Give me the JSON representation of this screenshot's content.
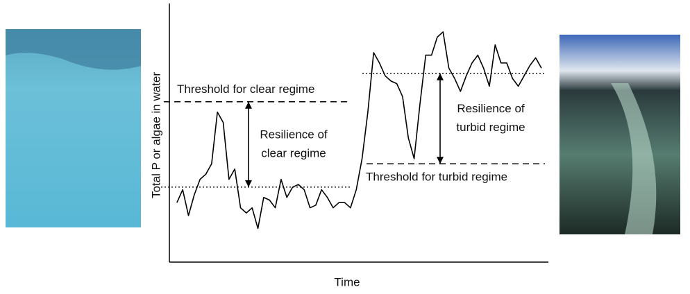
{
  "chart_data": {
    "type": "line",
    "xlabel": "Time",
    "ylabel": "Total P or algae in water",
    "x": [
      0,
      1,
      2,
      3,
      4,
      5,
      6,
      7,
      8,
      9,
      10,
      11,
      12,
      13,
      14,
      15,
      16,
      17,
      18,
      19,
      20,
      21,
      22,
      23,
      24,
      25,
      26,
      27,
      28,
      29,
      30,
      31,
      32,
      33,
      34,
      35,
      36,
      37,
      38,
      39,
      40,
      41,
      42,
      43,
      44,
      45,
      46,
      47,
      48,
      49,
      50,
      51,
      52,
      53,
      54,
      55,
      56,
      57,
      58,
      59,
      60,
      61,
      62,
      63
    ],
    "series": [
      {
        "color": "#000000",
        "values": [
          23,
          28,
          18,
          26,
          32,
          34,
          38,
          58,
          54,
          32,
          36,
          21,
          19,
          21,
          13,
          25,
          24,
          21,
          32,
          25,
          29,
          30,
          28,
          21,
          22,
          28,
          25,
          21,
          23,
          23,
          21,
          28,
          40,
          58,
          81,
          77,
          72,
          70,
          69,
          64,
          48,
          40,
          61,
          80,
          80,
          87,
          89,
          75,
          71,
          66,
          72,
          77,
          80,
          75,
          68,
          84,
          77,
          77,
          71,
          68,
          72,
          76,
          79,
          75
        ]
      }
    ],
    "xlim": [
      -1.3,
      64.2
    ],
    "ylim": [
      0,
      100
    ],
    "reference_lines": [
      {
        "label": "Threshold for clear regime",
        "value": 62,
        "style": "dashed"
      },
      {
        "label": "Threshold for turbid regime",
        "value": 38,
        "style": "dashed"
      },
      {
        "value": 29,
        "style": "dotted"
      },
      {
        "value": 73,
        "style": "dotted"
      }
    ],
    "resilience": [
      {
        "lines": [
          "Resilience of",
          "clear regime"
        ],
        "from": 29,
        "to": 62
      },
      {
        "lines": [
          "Resilience of",
          "turbid regime"
        ],
        "from": 73,
        "to": 38
      }
    ]
  }
}
